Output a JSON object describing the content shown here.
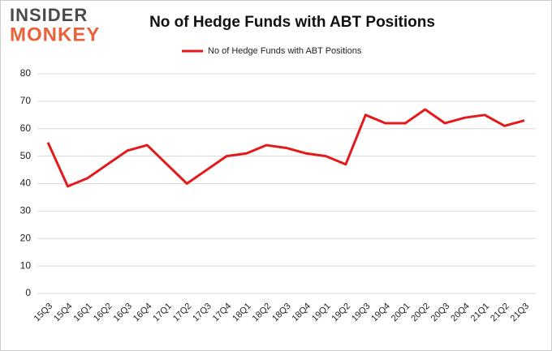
{
  "logo": [
    "INSIDER",
    "MONKEY"
  ],
  "chart_data": {
    "type": "line",
    "title": "No of Hedge Funds with ABT Positions",
    "categories": [
      "15Q3",
      "15Q4",
      "16Q1",
      "16Q2",
      "16Q3",
      "16Q4",
      "17Q1",
      "17Q2",
      "17Q3",
      "17Q4",
      "18Q1",
      "18Q2",
      "18Q3",
      "18Q4",
      "19Q1",
      "19Q2",
      "19Q3",
      "19Q4",
      "20Q1",
      "20Q2",
      "20Q3",
      "20Q4",
      "21Q1",
      "21Q2",
      "21Q3"
    ],
    "series": [
      {
        "name": "No of Hedge Funds with ABT Positions",
        "color": "#e31a1c",
        "values": [
          55,
          39,
          42,
          47,
          52,
          54,
          47,
          40,
          45,
          50,
          51,
          54,
          53,
          51,
          50,
          47,
          65,
          62,
          62,
          67,
          62,
          64,
          65,
          61,
          63
        ]
      }
    ],
    "ylim": [
      0,
      80
    ],
    "yticks": [
      0,
      10,
      20,
      30,
      40,
      50,
      60,
      70,
      80
    ],
    "grid": true,
    "legend": "top"
  }
}
